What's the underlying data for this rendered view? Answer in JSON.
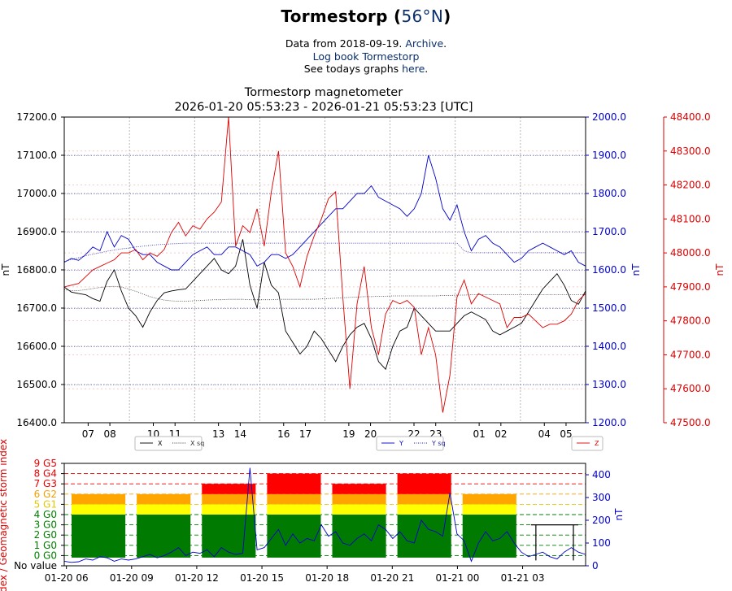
{
  "header": {
    "title_prefix": "Tormestorp (",
    "title_lat": "56°N",
    "title_suffix": ")",
    "line1_prefix": "Data from 2018-09-19. ",
    "line1_link": "Archive",
    "line1_suffix": ".",
    "line2_link": "Log book Tormestorp",
    "line3_prefix": "See todays graphs ",
    "line3_link": "here",
    "line3_suffix": "."
  },
  "chart_data": [
    {
      "type": "line",
      "title": "Tormestorp magnetometer",
      "subtitle": "2026-01-20 05:53:23 - 2026-01-21 05:53:23 [UTC]",
      "x_tick_labels": [
        "07",
        "08",
        "10",
        "11",
        "13",
        "14",
        "16",
        "17",
        "19",
        "20",
        "22",
        "23",
        "01",
        "02",
        "04",
        "05"
      ],
      "left_axis": {
        "label": "nT",
        "ylim": [
          16400,
          17200
        ],
        "ticks": [
          "16400.0",
          "16500.0",
          "16600.0",
          "16700.0",
          "16800.0",
          "16900.0",
          "17000.0",
          "17100.0",
          "17200.0"
        ],
        "color": "#000000"
      },
      "mid_axis": {
        "label": "nT",
        "ylim": [
          1200,
          2000
        ],
        "ticks": [
          "1200.0",
          "1300.0",
          "1400.0",
          "1500.0",
          "1600.0",
          "1700.0",
          "1800.0",
          "1900.0",
          "2000.0"
        ],
        "color": "#0000cc"
      },
      "right_axis": {
        "label": "nT",
        "ylim": [
          47500,
          48400
        ],
        "ticks": [
          "47500.0",
          "47600.0",
          "47700.0",
          "47800.0",
          "47900.0",
          "48000.0",
          "48100.0",
          "48200.0",
          "48300.0",
          "48400.0"
        ],
        "color": "#dd0000"
      },
      "series": [
        {
          "name": "X",
          "axis": "left",
          "color": "#000000",
          "values": [
            16755,
            16742,
            16738,
            16735,
            16725,
            16718,
            16770,
            16800,
            16745,
            16700,
            16680,
            16650,
            16690,
            16720,
            16740,
            16745,
            16748,
            16750,
            16770,
            16790,
            16810,
            16830,
            16800,
            16790,
            16810,
            16880,
            16760,
            16700,
            16820,
            16760,
            16740,
            16640,
            16610,
            16580,
            16600,
            16640,
            16620,
            16590,
            16560,
            16600,
            16630,
            16650,
            16660,
            16620,
            16560,
            16540,
            16600,
            16640,
            16650,
            16700,
            16680,
            16660,
            16640,
            16640,
            16640,
            16660,
            16680,
            16690,
            16680,
            16670,
            16640,
            16630,
            16640,
            16650,
            16660,
            16690,
            16720,
            16750,
            16770,
            16790,
            16760,
            16720,
            16710,
            16745
          ]
        },
        {
          "name": "X sq",
          "axis": "left",
          "color": "#333333",
          "dashed": true,
          "values": [
            16748,
            16746,
            16746,
            16748,
            16751,
            16754,
            16756,
            16757,
            16755,
            16750,
            16744,
            16737,
            16730,
            16725,
            16721,
            16719,
            16718,
            16718,
            16719,
            16720,
            16721,
            16722,
            16722,
            16723,
            16723,
            16723,
            16722,
            16722,
            16722,
            16722,
            16723,
            16723,
            16723,
            16723,
            16723,
            16723,
            16724,
            16725,
            16726,
            16727,
            16728,
            16729,
            16730,
            16730,
            16731,
            16731,
            16732,
            16732,
            16732,
            16732,
            16732,
            16732,
            16732,
            16733,
            16733,
            16734,
            16734,
            16735,
            16735,
            16735,
            16735,
            16735,
            16735,
            16735,
            16735,
            16735,
            16735,
            16735,
            16735,
            16735,
            16735,
            16735,
            16735,
            16735
          ]
        },
        {
          "name": "Y",
          "axis": "mid",
          "color": "#0000cc",
          "values": [
            1620,
            1630,
            1625,
            1640,
            1660,
            1650,
            1700,
            1660,
            1690,
            1680,
            1650,
            1640,
            1640,
            1620,
            1610,
            1600,
            1600,
            1620,
            1640,
            1650,
            1660,
            1640,
            1640,
            1660,
            1660,
            1650,
            1640,
            1610,
            1620,
            1640,
            1640,
            1630,
            1640,
            1660,
            1680,
            1700,
            1720,
            1740,
            1760,
            1760,
            1780,
            1800,
            1800,
            1820,
            1790,
            1780,
            1770,
            1760,
            1740,
            1760,
            1800,
            1900,
            1840,
            1760,
            1730,
            1770,
            1700,
            1650,
            1680,
            1690,
            1670,
            1660,
            1640,
            1620,
            1630,
            1650,
            1660,
            1670,
            1660,
            1650,
            1640,
            1650,
            1620,
            1610
          ]
        },
        {
          "name": "Y sq",
          "axis": "mid",
          "color": "#2222aa",
          "dashed": true,
          "values": [
            1622,
            1627,
            1632,
            1637,
            1641,
            1645,
            1649,
            1652,
            1655,
            1657,
            1660,
            1662,
            1664,
            1666,
            1667,
            1668,
            1669,
            1670,
            1670,
            1670,
            1670,
            1670,
            1670,
            1670,
            1670,
            1670,
            1670,
            1670,
            1670,
            1670,
            1670,
            1670,
            1670,
            1670,
            1670,
            1670,
            1670,
            1670,
            1670,
            1670,
            1670,
            1670,
            1670,
            1670,
            1670,
            1670,
            1670,
            1670,
            1670,
            1670,
            1670,
            1670,
            1670,
            1670,
            1670,
            1670,
            1650,
            1645,
            1645,
            1645,
            1645,
            1645,
            1645,
            1645,
            1645,
            1645,
            1645,
            1645,
            1645,
            1645,
            1645,
            1645,
            1645,
            1645
          ]
        },
        {
          "name": "Z",
          "axis": "right",
          "color": "#dd0000",
          "values": [
            47900,
            47905,
            47910,
            47930,
            47950,
            47960,
            47970,
            47980,
            48000,
            48000,
            48010,
            47980,
            48000,
            47990,
            48010,
            48060,
            48090,
            48050,
            48080,
            48070,
            48100,
            48120,
            48150,
            48400,
            48020,
            48080,
            48060,
            48130,
            48020,
            48180,
            48300,
            48000,
            47960,
            47900,
            47990,
            48050,
            48100,
            48160,
            48180,
            47870,
            47600,
            47850,
            47960,
            47780,
            47700,
            47820,
            47860,
            47850,
            47860,
            47840,
            47700,
            47780,
            47700,
            47530,
            47640,
            47870,
            47920,
            47850,
            47880,
            47870,
            47860,
            47850,
            47780,
            47810,
            47810,
            47820,
            47800,
            47780,
            47790,
            47790,
            47800,
            47820,
            47860,
            47880
          ]
        }
      ],
      "legend": {
        "left": [
          "X",
          "X sq"
        ],
        "mid": [
          "Y",
          "Y sq"
        ],
        "right": [
          "Z"
        ]
      }
    },
    {
      "type": "bar",
      "title": "",
      "ylabel": "Index / Geomagnetic storm index",
      "ylabel2": "nT",
      "y_tick_labels": [
        "No value",
        "0 G0",
        "1 G0",
        "2 G0",
        "3 G0",
        "4 G0",
        "5 G1",
        "6 G2",
        "7 G3",
        "8 G4",
        "9 G5"
      ],
      "y_tick_colors": [
        "#000000",
        "#008000",
        "#008000",
        "#008000",
        "#008000",
        "#008000",
        "#e6c800",
        "#f5a000",
        "#ee0000",
        "#ee0000",
        "#ee0000"
      ],
      "right_ticks": [
        "0",
        "100",
        "200",
        "300",
        "400"
      ],
      "ylim": [
        -1,
        9
      ],
      "ylim2": [
        0,
        450
      ],
      "x_tick_labels": [
        "01-20 06",
        "01-20 09",
        "01-20 12",
        "01-20 15",
        "01-20 18",
        "01-20 21",
        "01-21 00",
        "01-21 03"
      ],
      "kp_values": [
        6,
        6,
        7,
        8,
        7,
        8,
        6,
        3
      ],
      "kp_status": [
        "G2",
        "G2",
        "G3",
        "G4",
        "G3",
        "G4",
        "G2",
        "none"
      ],
      "nT_trace": [
        20,
        15,
        18,
        30,
        25,
        40,
        35,
        20,
        30,
        25,
        30,
        40,
        50,
        35,
        45,
        60,
        80,
        45,
        60,
        55,
        70,
        40,
        80,
        60,
        50,
        55,
        430,
        70,
        80,
        120,
        160,
        90,
        140,
        100,
        120,
        110,
        180,
        130,
        150,
        100,
        90,
        120,
        140,
        110,
        180,
        160,
        120,
        150,
        110,
        100,
        200,
        160,
        150,
        130,
        320,
        140,
        110,
        20,
        100,
        150,
        110,
        120,
        150,
        100,
        60,
        40,
        50,
        60,
        40,
        30,
        60,
        80,
        60,
        50
      ]
    }
  ]
}
